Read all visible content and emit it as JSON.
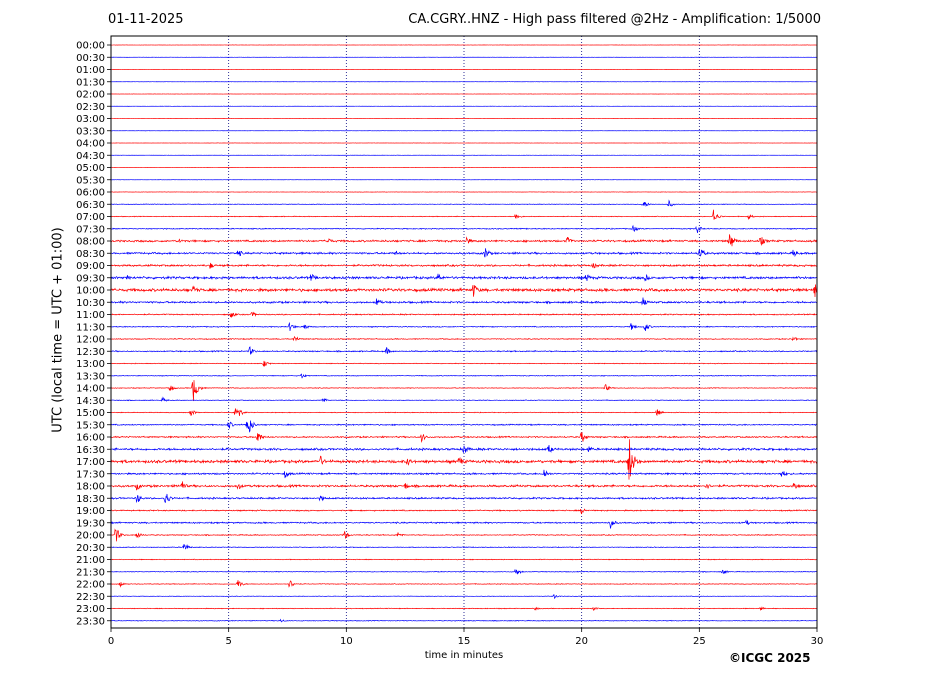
{
  "header": {
    "date": "01-11-2025",
    "title": "CA.CGRY..HNZ - High pass filtered @2Hz - Amplification: 1/5000"
  },
  "footer": {
    "copyright": "©ICGC 2025"
  },
  "chart_data": {
    "type": "line",
    "title": "CA.CGRY..HNZ - High pass filtered @2Hz - Amplification: 1/5000",
    "xlabel": "time in minutes",
    "ylabel": "UTC (local time = UTC + 01:00)",
    "xlim": [
      0,
      30
    ],
    "x_ticks": [
      0,
      5,
      10,
      15,
      20,
      25,
      30
    ],
    "vertical_gridlines_at": [
      5,
      10,
      15,
      20,
      25
    ],
    "row_labels": [
      "00:00",
      "00:30",
      "01:00",
      "01:30",
      "02:00",
      "02:30",
      "03:00",
      "03:30",
      "04:00",
      "04:30",
      "05:00",
      "05:30",
      "06:00",
      "06:30",
      "07:00",
      "07:30",
      "08:00",
      "08:30",
      "09:00",
      "09:30",
      "10:00",
      "10:30",
      "11:00",
      "11:30",
      "12:00",
      "12:30",
      "13:00",
      "13:30",
      "14:00",
      "14:30",
      "15:00",
      "15:30",
      "16:00",
      "16:30",
      "17:00",
      "17:30",
      "18:00",
      "18:30",
      "19:00",
      "19:30",
      "20:00",
      "20:30",
      "21:00",
      "21:30",
      "22:00",
      "22:30",
      "23:00",
      "23:30"
    ],
    "series_colors": [
      "#ff0000",
      "#0000ff"
    ],
    "background_noise": [
      0.1,
      0.1,
      0.1,
      0.1,
      0.1,
      0.1,
      0.1,
      0.1,
      0.1,
      0.1,
      0.1,
      0.1,
      0.15,
      0.25,
      0.3,
      0.4,
      0.8,
      0.8,
      0.8,
      1.0,
      1.2,
      0.8,
      0.5,
      0.4,
      0.4,
      0.5,
      0.3,
      0.3,
      0.3,
      0.3,
      0.3,
      0.5,
      0.6,
      0.9,
      1.2,
      0.7,
      0.9,
      0.7,
      0.5,
      0.6,
      0.4,
      0.3,
      0.3,
      0.3,
      0.3,
      0.2,
      0.3,
      0.3
    ],
    "events": [
      {
        "row": 13,
        "t": 22.6,
        "amp": 5
      },
      {
        "row": 13,
        "t": 23.7,
        "amp": 4
      },
      {
        "row": 14,
        "t": 17.2,
        "amp": 4
      },
      {
        "row": 14,
        "t": 25.6,
        "amp": 8
      },
      {
        "row": 14,
        "t": 27.1,
        "amp": 3
      },
      {
        "row": 15,
        "t": 22.2,
        "amp": 4
      },
      {
        "row": 15,
        "t": 24.9,
        "amp": 5
      },
      {
        "row": 16,
        "t": 2.9,
        "amp": 3
      },
      {
        "row": 16,
        "t": 9.2,
        "amp": 4
      },
      {
        "row": 16,
        "t": 15.1,
        "amp": 5
      },
      {
        "row": 16,
        "t": 19.4,
        "amp": 5
      },
      {
        "row": 16,
        "t": 26.3,
        "amp": 10
      },
      {
        "row": 16,
        "t": 27.6,
        "amp": 6
      },
      {
        "row": 17,
        "t": 5.4,
        "amp": 5
      },
      {
        "row": 17,
        "t": 12.1,
        "amp": 3
      },
      {
        "row": 17,
        "t": 15.9,
        "amp": 7
      },
      {
        "row": 17,
        "t": 25.0,
        "amp": 8
      },
      {
        "row": 17,
        "t": 29.0,
        "amp": 5
      },
      {
        "row": 18,
        "t": 4.2,
        "amp": 4
      },
      {
        "row": 18,
        "t": 20.5,
        "amp": 4
      },
      {
        "row": 19,
        "t": 0.7,
        "amp": 3
      },
      {
        "row": 19,
        "t": 8.5,
        "amp": 5
      },
      {
        "row": 19,
        "t": 13.9,
        "amp": 5
      },
      {
        "row": 19,
        "t": 20.2,
        "amp": 5
      },
      {
        "row": 19,
        "t": 22.7,
        "amp": 4
      },
      {
        "row": 20,
        "t": 3.5,
        "amp": 5
      },
      {
        "row": 20,
        "t": 15.4,
        "amp": 8
      },
      {
        "row": 20,
        "t": 29.9,
        "amp": 8
      },
      {
        "row": 21,
        "t": 11.3,
        "amp": 5
      },
      {
        "row": 21,
        "t": 22.6,
        "amp": 5
      },
      {
        "row": 22,
        "t": 5.1,
        "amp": 4
      },
      {
        "row": 22,
        "t": 6.0,
        "amp": 3
      },
      {
        "row": 23,
        "t": 7.6,
        "amp": 5
      },
      {
        "row": 23,
        "t": 8.2,
        "amp": 4
      },
      {
        "row": 23,
        "t": 22.1,
        "amp": 4
      },
      {
        "row": 23,
        "t": 22.7,
        "amp": 5
      },
      {
        "row": 24,
        "t": 7.8,
        "amp": 4
      },
      {
        "row": 24,
        "t": 29.0,
        "amp": 3
      },
      {
        "row": 25,
        "t": 5.9,
        "amp": 5
      },
      {
        "row": 25,
        "t": 11.7,
        "amp": 4
      },
      {
        "row": 26,
        "t": 6.5,
        "amp": 4
      },
      {
        "row": 27,
        "t": 8.1,
        "amp": 3
      },
      {
        "row": 28,
        "t": 2.5,
        "amp": 4
      },
      {
        "row": 28,
        "t": 3.5,
        "amp": 14
      },
      {
        "row": 28,
        "t": 21.0,
        "amp": 4
      },
      {
        "row": 29,
        "t": 2.2,
        "amp": 3
      },
      {
        "row": 29,
        "t": 9.0,
        "amp": 3
      },
      {
        "row": 30,
        "t": 3.4,
        "amp": 4
      },
      {
        "row": 30,
        "t": 5.3,
        "amp": 12
      },
      {
        "row": 30,
        "t": 23.2,
        "amp": 4
      },
      {
        "row": 31,
        "t": 5.0,
        "amp": 5
      },
      {
        "row": 31,
        "t": 5.8,
        "amp": 14
      },
      {
        "row": 32,
        "t": 6.2,
        "amp": 8
      },
      {
        "row": 32,
        "t": 13.2,
        "amp": 5
      },
      {
        "row": 32,
        "t": 20.0,
        "amp": 7
      },
      {
        "row": 33,
        "t": 15.0,
        "amp": 6
      },
      {
        "row": 33,
        "t": 18.6,
        "amp": 5
      },
      {
        "row": 33,
        "t": 20.3,
        "amp": 4
      },
      {
        "row": 34,
        "t": 8.9,
        "amp": 6
      },
      {
        "row": 34,
        "t": 12.6,
        "amp": 5
      },
      {
        "row": 34,
        "t": 14.8,
        "amp": 6
      },
      {
        "row": 34,
        "t": 22.0,
        "amp": 30
      },
      {
        "row": 35,
        "t": 7.4,
        "amp": 5
      },
      {
        "row": 35,
        "t": 18.4,
        "amp": 6
      },
      {
        "row": 35,
        "t": 28.5,
        "amp": 5
      },
      {
        "row": 36,
        "t": 1.1,
        "amp": 5
      },
      {
        "row": 36,
        "t": 3.0,
        "amp": 6
      },
      {
        "row": 36,
        "t": 5.4,
        "amp": 4
      },
      {
        "row": 36,
        "t": 12.5,
        "amp": 4
      },
      {
        "row": 36,
        "t": 25.3,
        "amp": 4
      },
      {
        "row": 36,
        "t": 29.0,
        "amp": 6
      },
      {
        "row": 37,
        "t": 1.1,
        "amp": 6
      },
      {
        "row": 37,
        "t": 2.3,
        "amp": 9
      },
      {
        "row": 37,
        "t": 8.9,
        "amp": 4
      },
      {
        "row": 38,
        "t": 20.0,
        "amp": 4
      },
      {
        "row": 39,
        "t": 21.2,
        "amp": 7
      },
      {
        "row": 39,
        "t": 27.0,
        "amp": 3
      },
      {
        "row": 40,
        "t": 0.2,
        "amp": 9
      },
      {
        "row": 40,
        "t": 1.1,
        "amp": 4
      },
      {
        "row": 40,
        "t": 9.9,
        "amp": 5
      },
      {
        "row": 40,
        "t": 12.2,
        "amp": 3
      },
      {
        "row": 41,
        "t": 3.1,
        "amp": 5
      },
      {
        "row": 43,
        "t": 17.2,
        "amp": 5
      },
      {
        "row": 43,
        "t": 26.0,
        "amp": 3
      },
      {
        "row": 44,
        "t": 0.4,
        "amp": 3
      },
      {
        "row": 44,
        "t": 5.4,
        "amp": 5
      },
      {
        "row": 44,
        "t": 7.6,
        "amp": 5
      },
      {
        "row": 45,
        "t": 18.8,
        "amp": 3
      },
      {
        "row": 46,
        "t": 18.0,
        "amp": 2
      },
      {
        "row": 46,
        "t": 20.5,
        "amp": 2
      },
      {
        "row": 46,
        "t": 27.6,
        "amp": 2
      },
      {
        "row": 47,
        "t": 7.2,
        "amp": 2
      }
    ]
  }
}
